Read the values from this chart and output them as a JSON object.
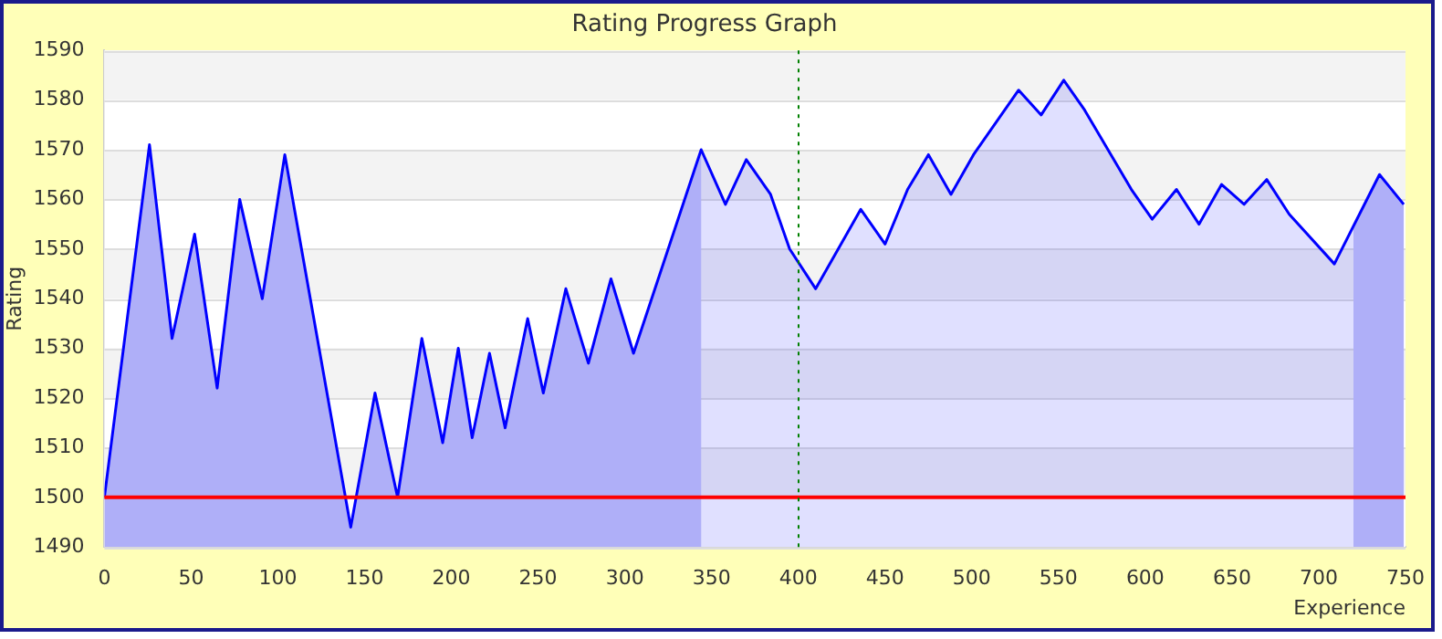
{
  "chart_data": {
    "type": "area",
    "title": "Rating Progress Graph",
    "xlabel": "Experience",
    "ylabel": "Rating",
    "x": [
      0,
      26,
      39,
      52,
      65,
      78,
      91,
      104,
      142,
      156,
      169,
      183,
      195,
      204,
      212,
      222,
      231,
      244,
      253,
      266,
      279,
      292,
      305,
      344,
      358,
      370,
      384,
      395,
      410,
      436,
      450,
      463,
      475,
      488,
      501,
      527,
      540,
      553,
      565,
      592,
      604,
      618,
      631,
      644,
      657,
      670,
      683,
      709,
      735,
      749
    ],
    "series": [
      {
        "color": "#0000ff",
        "values": [
          1500,
          1571,
          1532,
          1553,
          1522,
          1560,
          1540,
          1569,
          1494,
          1521,
          1500,
          1532,
          1511,
          1530,
          1512,
          1529,
          1514,
          1536,
          1521,
          1542,
          1527,
          1544,
          1529,
          1570,
          1559,
          1568,
          1561,
          1550,
          1542,
          1558,
          1551,
          1562,
          1569,
          1561,
          1569,
          1582,
          1577,
          1584,
          1578,
          1562,
          1556,
          1562,
          1555,
          1563,
          1559,
          1564,
          1557,
          1547,
          1565,
          1559
        ]
      }
    ],
    "xlim": [
      0,
      750
    ],
    "xticks": [
      0,
      50,
      100,
      150,
      200,
      250,
      300,
      350,
      400,
      450,
      500,
      550,
      600,
      650,
      700,
      750
    ],
    "ylim": [
      1490,
      1590
    ],
    "yticks": [
      1490,
      1500,
      1510,
      1520,
      1530,
      1540,
      1550,
      1560,
      1570,
      1580,
      1590
    ],
    "grid": "y",
    "legend": false,
    "marker": "none",
    "line_style": "solid",
    "ref_lines": [
      {
        "axis": "y",
        "value": 1500,
        "color": "#ff0000",
        "line_style": "solid"
      },
      {
        "axis": "x",
        "value": 400,
        "color": "#008000",
        "line_style": "dotted"
      }
    ],
    "bands": [
      {
        "axis": "x",
        "from": 0,
        "to": 344,
        "color": "#c8c8f8"
      },
      {
        "axis": "x",
        "from": 720,
        "to": 750,
        "color": "#c8c8f8"
      }
    ]
  }
}
